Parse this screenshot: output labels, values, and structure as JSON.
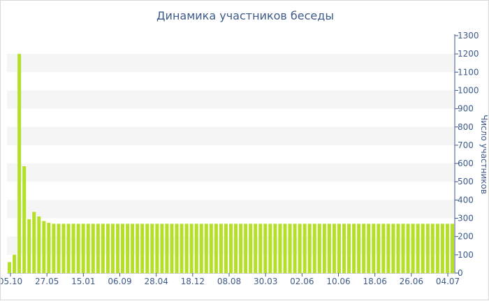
{
  "chart_data": {
    "type": "bar",
    "title": "Динамика участников беседы",
    "ylabel": "Число участников",
    "xlabel": "",
    "ylim": [
      0,
      1300
    ],
    "yticks": [
      0,
      100,
      200,
      300,
      400,
      500,
      600,
      700,
      800,
      900,
      1000,
      1100,
      1200,
      1300
    ],
    "x_tick_labels": [
      "05.10",
      "27.05",
      "15.01",
      "06.09",
      "28.04",
      "18.12",
      "08.08",
      "30.03",
      "02.06",
      "10.06",
      "18.06",
      "26.06",
      "04.07"
    ],
    "values": [
      60,
      100,
      1200,
      585,
      295,
      335,
      310,
      285,
      275,
      270,
      270,
      270,
      270,
      270,
      270,
      270,
      270,
      270,
      270,
      270,
      270,
      270,
      270,
      270,
      270,
      270,
      270,
      270,
      270,
      270,
      270,
      270,
      270,
      270,
      270,
      270,
      270,
      270,
      270,
      270,
      270,
      270,
      270,
      270,
      270,
      270,
      270,
      270,
      270,
      270,
      270,
      270,
      270,
      270,
      270,
      270,
      270,
      270,
      270,
      270,
      270,
      270,
      270,
      270,
      270,
      270,
      270,
      270,
      270,
      270,
      270,
      270,
      270,
      270,
      270,
      270,
      270,
      270,
      270,
      270,
      270,
      270,
      270,
      270,
      270,
      270,
      270,
      270,
      270,
      270,
      270
    ],
    "grid": true,
    "y_axis_position": "right",
    "colors": {
      "bar": "#b5e02a",
      "band": "#f5f5f5",
      "text": "#3d5a8a",
      "axis": "#3d5a8a"
    }
  }
}
